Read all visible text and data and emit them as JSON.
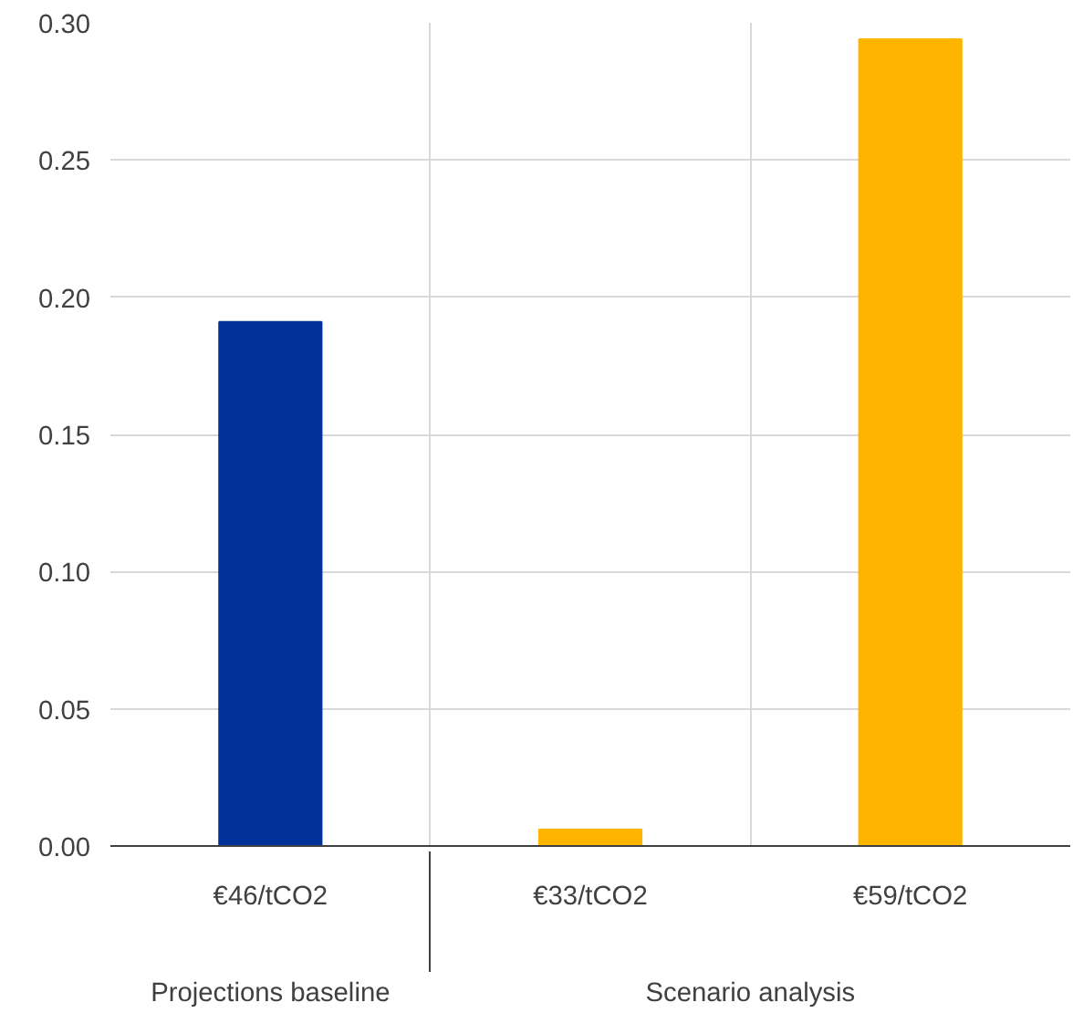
{
  "chart_data": {
    "type": "bar",
    "categories": [
      "€46/tCO2",
      "€33/tCO2",
      "€59/tCO2"
    ],
    "values": [
      0.191,
      0.006,
      0.294
    ],
    "colors": [
      "#003299",
      "#ffb400",
      "#ffb400"
    ],
    "ylim": [
      0,
      0.3
    ],
    "yticks": [
      {
        "value": 0,
        "label": "0.00"
      },
      {
        "value": 0.05,
        "label": "0.05"
      },
      {
        "value": 0.1,
        "label": "0.10"
      },
      {
        "value": 0.15,
        "label": "0.15"
      },
      {
        "value": 0.2,
        "label": "0.20"
      },
      {
        "value": 0.25,
        "label": "0.25"
      },
      {
        "value": 0.3,
        "label": "0.30"
      }
    ],
    "grid": true,
    "annotations": [
      "Projections baseline",
      "Scenario analysis"
    ]
  }
}
